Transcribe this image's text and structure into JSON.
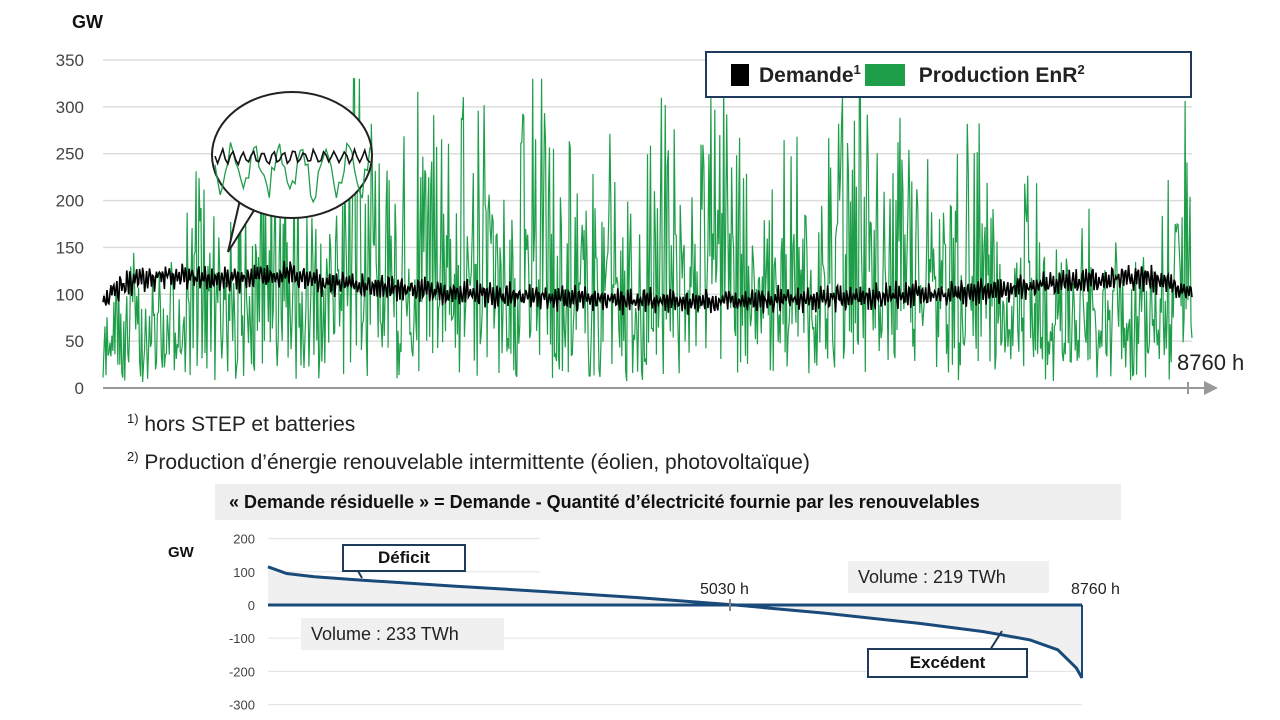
{
  "chart_data": [
    {
      "type": "line",
      "title": "",
      "ylabel": "GW",
      "x_end_label": "8760 h",
      "ylim": [
        0,
        350
      ],
      "yticks": [
        0,
        50,
        100,
        150,
        200,
        250,
        300,
        350
      ],
      "grid": true,
      "legend_position": "top-right",
      "series": [
        {
          "name": "Demande",
          "name_sup": "1",
          "color": "#000000",
          "x": [
            0,
            250,
            500,
            750,
            1000,
            1250,
            1500,
            1750,
            2000,
            2250,
            2500,
            2750,
            3000,
            3250,
            3500,
            3750,
            4000,
            4250,
            4500,
            4750,
            5000,
            5250,
            5500,
            5750,
            6000,
            6250,
            6500,
            6750,
            7000,
            7250,
            7500,
            7750,
            8000,
            8250,
            8500,
            8760
          ],
          "values": [
            95,
            115,
            120,
            118,
            115,
            118,
            122,
            112,
            110,
            108,
            105,
            102,
            100,
            98,
            98,
            95,
            95,
            93,
            92,
            92,
            93,
            92,
            95,
            95,
            97,
            98,
            100,
            100,
            102,
            105,
            110,
            112,
            115,
            118,
            115,
            100
          ]
        },
        {
          "name": "Production EnR",
          "name_sup": "2",
          "color": "#1f9e4a",
          "x": [
            0,
            250,
            500,
            750,
            1000,
            1250,
            1500,
            1750,
            2000,
            2250,
            2500,
            2750,
            3000,
            3250,
            3500,
            3750,
            4000,
            4250,
            4500,
            4750,
            5000,
            5250,
            5500,
            5750,
            6000,
            6250,
            6500,
            6750,
            7000,
            7250,
            7500,
            7750,
            8000,
            8250,
            8500,
            8760
          ],
          "values": [
            40,
            110,
            80,
            150,
            120,
            170,
            190,
            100,
            260,
            150,
            210,
            180,
            240,
            130,
            250,
            170,
            200,
            120,
            230,
            160,
            250,
            110,
            200,
            140,
            280,
            150,
            220,
            120,
            210,
            100,
            170,
            90,
            150,
            80,
            120,
            220
          ]
        }
      ]
    },
    {
      "type": "area",
      "title": "« Demande résiduelle » = Demande - Quantité d’électricité fournie par les renouvelables",
      "ylabel": "GW",
      "ylim": [
        -300,
        200
      ],
      "yticks": [
        200,
        100,
        0,
        -100,
        -200,
        -300
      ],
      "x_end_label": "8760 h",
      "crossing_label": "5030 h",
      "x": [
        0,
        200,
        500,
        1000,
        2000,
        3000,
        4000,
        5030,
        6000,
        7000,
        7700,
        8200,
        8500,
        8700,
        8760
      ],
      "values": [
        115,
        95,
        85,
        75,
        57,
        40,
        22,
        0,
        -25,
        -55,
        -80,
        -105,
        -135,
        -190,
        -220
      ],
      "annotations": {
        "deficit": "Déficit",
        "excedent": "Excédent",
        "volume_deficit": "Volume : 233 TWh",
        "volume_excedent": "Volume : 219 TWh"
      },
      "line_color": "#1a4a7a",
      "fill_color": "#f0f0f0"
    }
  ],
  "footnotes": {
    "n1_sup": "1)",
    "n1_text": " hors STEP et batteries",
    "n2_sup": "2)",
    "n2_text": " Production d’énergie renouvelable intermittente (éolien, photovoltaïque)"
  }
}
